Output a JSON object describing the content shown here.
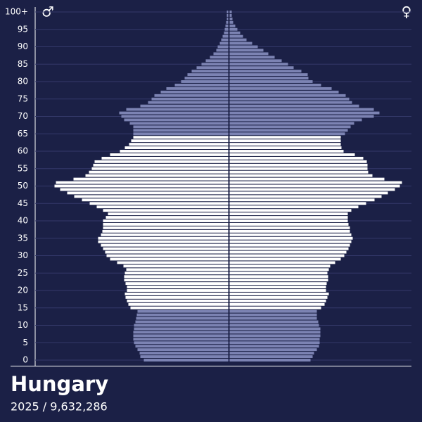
{
  "chart_data": {
    "type": "pyramid",
    "title": "Hungary",
    "subtitle": "2025 / 9,632,286",
    "categories": [
      "0",
      null,
      null,
      null,
      null,
      "5",
      null,
      null,
      null,
      null,
      "10",
      null,
      null,
      null,
      null,
      "15",
      null,
      null,
      null,
      null,
      "20",
      null,
      null,
      null,
      null,
      "25",
      null,
      null,
      null,
      null,
      "30",
      null,
      null,
      null,
      null,
      "35",
      null,
      null,
      null,
      null,
      "40",
      null,
      null,
      null,
      null,
      "45",
      null,
      null,
      null,
      null,
      "50",
      null,
      null,
      null,
      null,
      "55",
      null,
      null,
      null,
      null,
      "60",
      null,
      null,
      null,
      null,
      "65",
      null,
      null,
      null,
      null,
      "70",
      null,
      null,
      null,
      null,
      "75",
      null,
      null,
      null,
      null,
      "80",
      null,
      null,
      null,
      null,
      "85",
      null,
      null,
      null,
      null,
      "90",
      null,
      null,
      null,
      null,
      "95",
      null,
      null,
      null,
      null,
      "100+"
    ],
    "series": [
      {
        "name": "♂",
        "color": "#7c83b3",
        "values": [
          40800,
          42500,
          42840,
          43860,
          44880,
          45560,
          45900,
          45900,
          45900,
          45560,
          45560,
          44880,
          44540,
          44200,
          43860,
          47260,
          48280,
          48960,
          49640,
          49980,
          48960,
          48960,
          49640,
          50320,
          50320,
          49980,
          49300,
          50660,
          53720,
          57120,
          58820,
          59500,
          60520,
          61540,
          62900,
          62900,
          61540,
          60860,
          60520,
          60520,
          60520,
          59160,
          58140,
          60520,
          63580,
          66980,
          70720,
          74460,
          77860,
          81260,
          83980,
          83300,
          74800,
          69020,
          67320,
          65960,
          65280,
          64600,
          61200,
          57120,
          52360,
          49980,
          47940,
          46920,
          45900,
          45900,
          45900,
          45900,
          47600,
          50320,
          51680,
          52700,
          49300,
          42500,
          38760,
          37060,
          35700,
          32640,
          29920,
          25840,
          22780,
          21080,
          19720,
          17680,
          15300,
          12920,
          10880,
          8840,
          7140,
          5780,
          5100,
          4080,
          3400,
          2720,
          2040,
          1700,
          1360,
          1020,
          680,
          680,
          680
        ]
      },
      {
        "name": "♀",
        "color": "#7c83b3",
        "values": [
          39100,
          40120,
          40800,
          42160,
          43180,
          43520,
          43520,
          43860,
          43860,
          43860,
          43180,
          42840,
          42160,
          42160,
          42160,
          44200,
          45900,
          46580,
          47260,
          47940,
          46580,
          46580,
          46920,
          47600,
          47600,
          47260,
          47940,
          48620,
          51000,
          53720,
          55420,
          56440,
          57460,
          58140,
          58820,
          59500,
          58820,
          58140,
          58140,
          57460,
          57120,
          57120,
          57120,
          58820,
          62220,
          65960,
          70040,
          73440,
          76500,
          79900,
          82280,
          83300,
          74800,
          69020,
          66980,
          66640,
          66640,
          66300,
          64600,
          60520,
          55080,
          54060,
          53720,
          53720,
          53720,
          55760,
          57120,
          58480,
          60180,
          63920,
          69700,
          72420,
          69700,
          62560,
          59160,
          57800,
          56100,
          52700,
          49300,
          44200,
          40120,
          38080,
          37740,
          34680,
          30940,
          28220,
          25160,
          21760,
          18700,
          16320,
          13600,
          10880,
          8160,
          6460,
          5100,
          3740,
          2720,
          1700,
          1360,
          1020,
          1020
        ]
      }
    ],
    "highlight": {
      "from": 15,
      "to": 64,
      "color": "#ffffff"
    },
    "xlim": [
      0,
      93500
    ],
    "grid": true
  }
}
